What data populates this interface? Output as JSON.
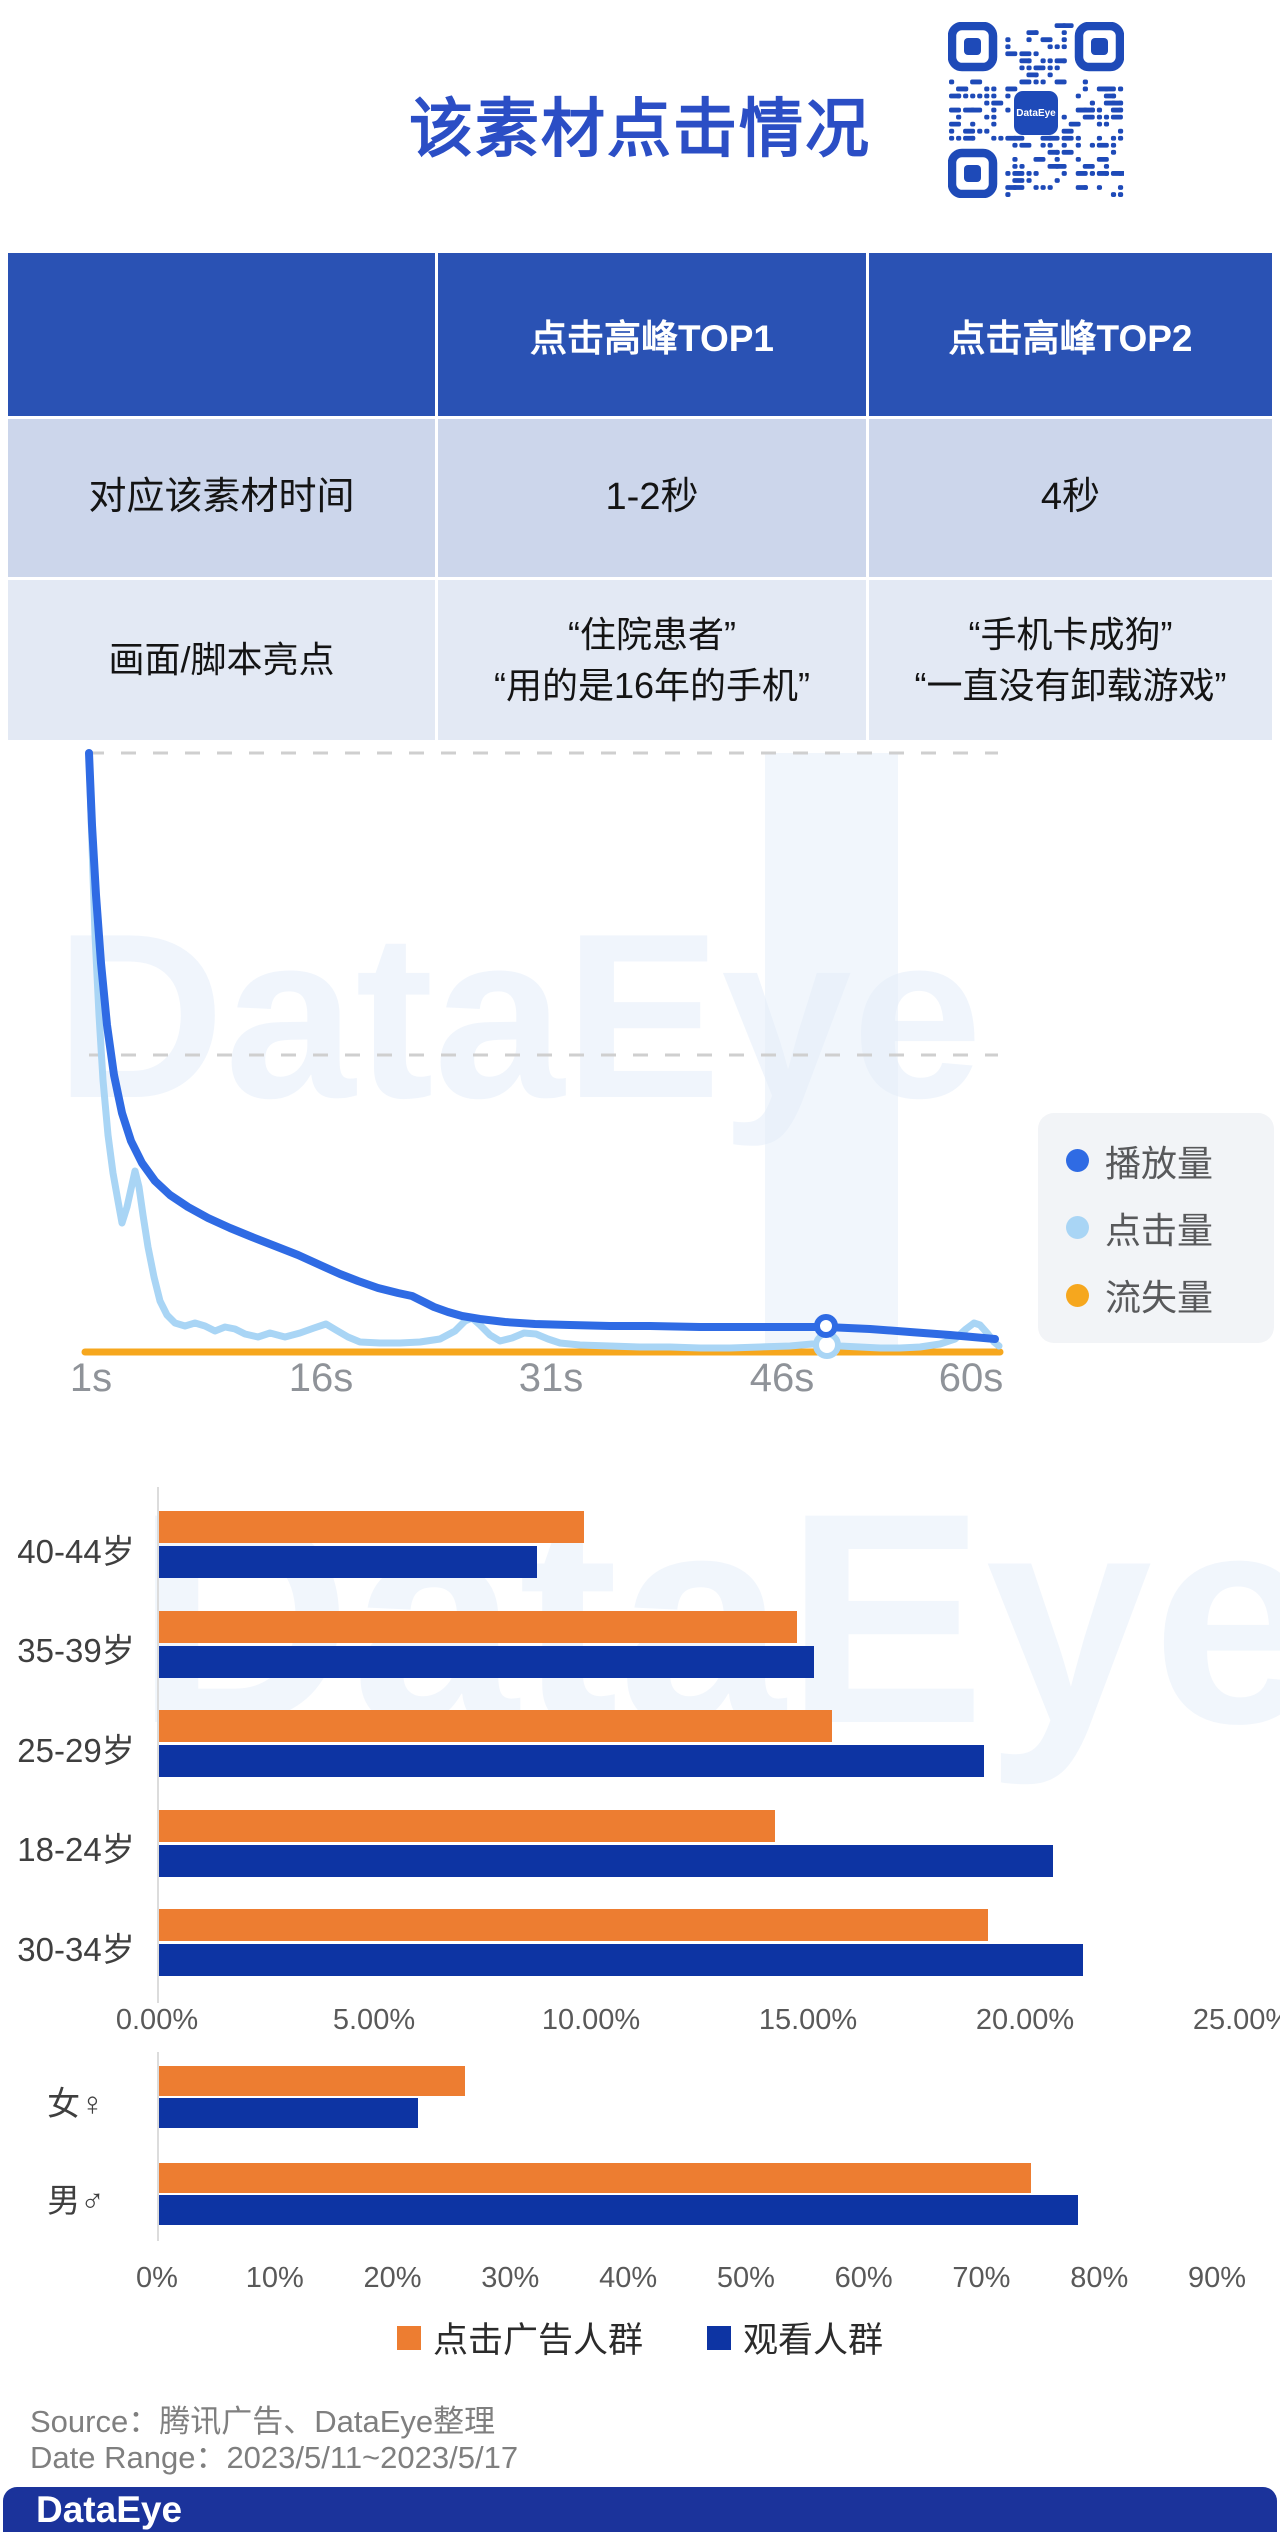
{
  "page": {
    "title": "该素材点击情况"
  },
  "qr": {
    "label": "DataEye",
    "color": "#1e4ab8"
  },
  "table": {
    "header": [
      "",
      "点击高峰TOP1",
      "点击高峰TOP2"
    ],
    "rows": [
      {
        "label": "对应该素材时间",
        "top1": "1-2秒",
        "top2": "4秒"
      },
      {
        "label": "画面/脚本亮点",
        "top1_lines": [
          "“住院患者”",
          "“用的是16年的手机”"
        ],
        "top2_lines": [
          "“手机卡成狗”",
          "“一直没有卸载游戏”"
        ]
      }
    ]
  },
  "chart_data": [
    {
      "type": "line",
      "note": "video play / click / loss trend over 60s; no y-axis shown, values are % of peak estimated from gridlines",
      "x_ticks": [
        "1s",
        "16s",
        "31s",
        "46s",
        "60s"
      ],
      "grid": "horizontal dashed, 2 lines",
      "legend_position": "right panel",
      "series": [
        {
          "name": "播放量",
          "color": "#2f6be4",
          "x_seconds": [
            1,
            2,
            3,
            4,
            5,
            6,
            7,
            9,
            11,
            13,
            15,
            17,
            19,
            21,
            24,
            26,
            31,
            36,
            42,
            50,
            58,
            60
          ],
          "values": [
            100,
            62,
            48,
            39,
            33,
            28,
            25,
            22,
            19,
            17,
            15,
            13,
            11.5,
            10,
            8,
            6,
            4.8,
            4.5,
            4.2,
            4.2,
            3,
            2.2
          ]
        },
        {
          "name": "点击量",
          "color": "#a9d5f5",
          "x_seconds": [
            1,
            2,
            3,
            4,
            5,
            6,
            7,
            8,
            10,
            13,
            15,
            17,
            19,
            23,
            26,
            28,
            31,
            35,
            42,
            50,
            55,
            60,
            61
          ],
          "values": [
            100,
            55,
            21.5,
            30,
            18,
            8,
            5,
            4.5,
            3.7,
            3.5,
            3.7,
            4.7,
            1.7,
            3.7,
            5.7,
            1.7,
            3.3,
            1.2,
            0.8,
            1.3,
            1.7,
            4.8,
            1.2
          ]
        },
        {
          "name": "流失量",
          "color": "#f6a71e",
          "x_seconds": [
            1,
            60
          ],
          "values": [
            0,
            0
          ]
        }
      ],
      "markers": [
        {
          "series": "播放量",
          "x_seconds": 49
        },
        {
          "series": "点击量",
          "x_seconds": 49
        }
      ]
    },
    {
      "type": "bar",
      "orientation": "horizontal",
      "categories": [
        "40-44岁",
        "35-39岁",
        "25-29岁",
        "18-24岁",
        "30-34岁"
      ],
      "series": [
        {
          "name": "点击广告人群",
          "color": "#ed7d31",
          "values": [
            9.8,
            14.7,
            15.5,
            14.2,
            19.1
          ]
        },
        {
          "name": "观看人群",
          "color": "#0d34a3",
          "values": [
            8.7,
            15.1,
            19.0,
            20.6,
            21.3
          ]
        }
      ],
      "x_ticks": [
        "0.00%",
        "5.00%",
        "10.00%",
        "15.00%",
        "20.00%",
        "25.00%"
      ],
      "xlim": [
        0,
        25
      ],
      "unit": "%"
    },
    {
      "type": "bar",
      "orientation": "horizontal",
      "categories": [
        "女♀",
        "男♂"
      ],
      "series": [
        {
          "name": "点击广告人群",
          "color": "#ed7d31",
          "values": [
            26,
            74
          ]
        },
        {
          "name": "观看人群",
          "color": "#0d34a3",
          "values": [
            22,
            78
          ]
        }
      ],
      "x_ticks": [
        "0%",
        "10%",
        "20%",
        "30%",
        "40%",
        "50%",
        "60%",
        "70%",
        "80%",
        "90%"
      ],
      "xlim": [
        0,
        90
      ],
      "unit": "%"
    }
  ],
  "line_legend": [
    {
      "label": "播放量",
      "color": "#2f6be4"
    },
    {
      "label": "点击量",
      "color": "#a9d5f5"
    },
    {
      "label": "流失量",
      "color": "#f6a71e"
    }
  ],
  "bottom_legend": [
    {
      "label": "点击广告人群",
      "color": "#ed7d31"
    },
    {
      "label": "观看人群",
      "color": "#0d34a3"
    }
  ],
  "source": {
    "line1": "Source：腾讯广告、DataEye整理",
    "line2": "Date Range：2023/5/11~2023/5/17"
  },
  "footer": {
    "logo": "DataEye"
  },
  "watermark": "DataEye",
  "colors": {
    "title": "#2b4ec5",
    "table_header_bg": "#2a52b4",
    "table_row1_bg": "#ccd6eb",
    "table_row2_bg": "#e3e9f4",
    "footer_bg": "#1b339b"
  }
}
